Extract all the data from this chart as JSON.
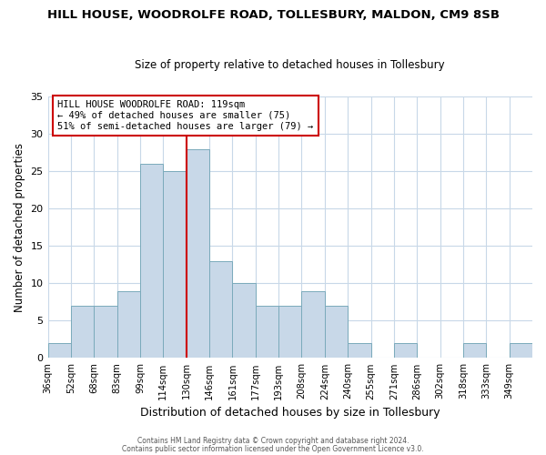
{
  "title": "HILL HOUSE, WOODROLFE ROAD, TOLLESBURY, MALDON, CM9 8SB",
  "subtitle": "Size of property relative to detached houses in Tollesbury",
  "xlabel": "Distribution of detached houses by size in Tollesbury",
  "ylabel": "Number of detached properties",
  "bar_labels": [
    "36sqm",
    "52sqm",
    "68sqm",
    "83sqm",
    "99sqm",
    "114sqm",
    "130sqm",
    "146sqm",
    "161sqm",
    "177sqm",
    "193sqm",
    "208sqm",
    "224sqm",
    "240sqm",
    "255sqm",
    "271sqm",
    "286sqm",
    "302sqm",
    "318sqm",
    "333sqm",
    "349sqm"
  ],
  "bar_values": [
    2,
    7,
    7,
    9,
    26,
    25,
    28,
    13,
    10,
    7,
    7,
    9,
    7,
    2,
    0,
    2,
    0,
    0,
    2,
    0,
    2
  ],
  "bar_color": "#c8d8e8",
  "bar_edge_color": "#7aaabb",
  "vline_color": "#cc0000",
  "annotation_line1": "HILL HOUSE WOODROLFE ROAD: 119sqm",
  "annotation_line2": "← 49% of detached houses are smaller (75)",
  "annotation_line3": "51% of semi-detached houses are larger (79) →",
  "annotation_box_color": "#ffffff",
  "annotation_box_edge": "#cc0000",
  "ylim": [
    0,
    35
  ],
  "yticks": [
    0,
    5,
    10,
    15,
    20,
    25,
    30,
    35
  ],
  "footer1": "Contains HM Land Registry data © Crown copyright and database right 2024.",
  "footer2": "Contains public sector information licensed under the Open Government Licence v3.0.",
  "bg_color": "#ffffff",
  "grid_color": "#c8d8e8"
}
